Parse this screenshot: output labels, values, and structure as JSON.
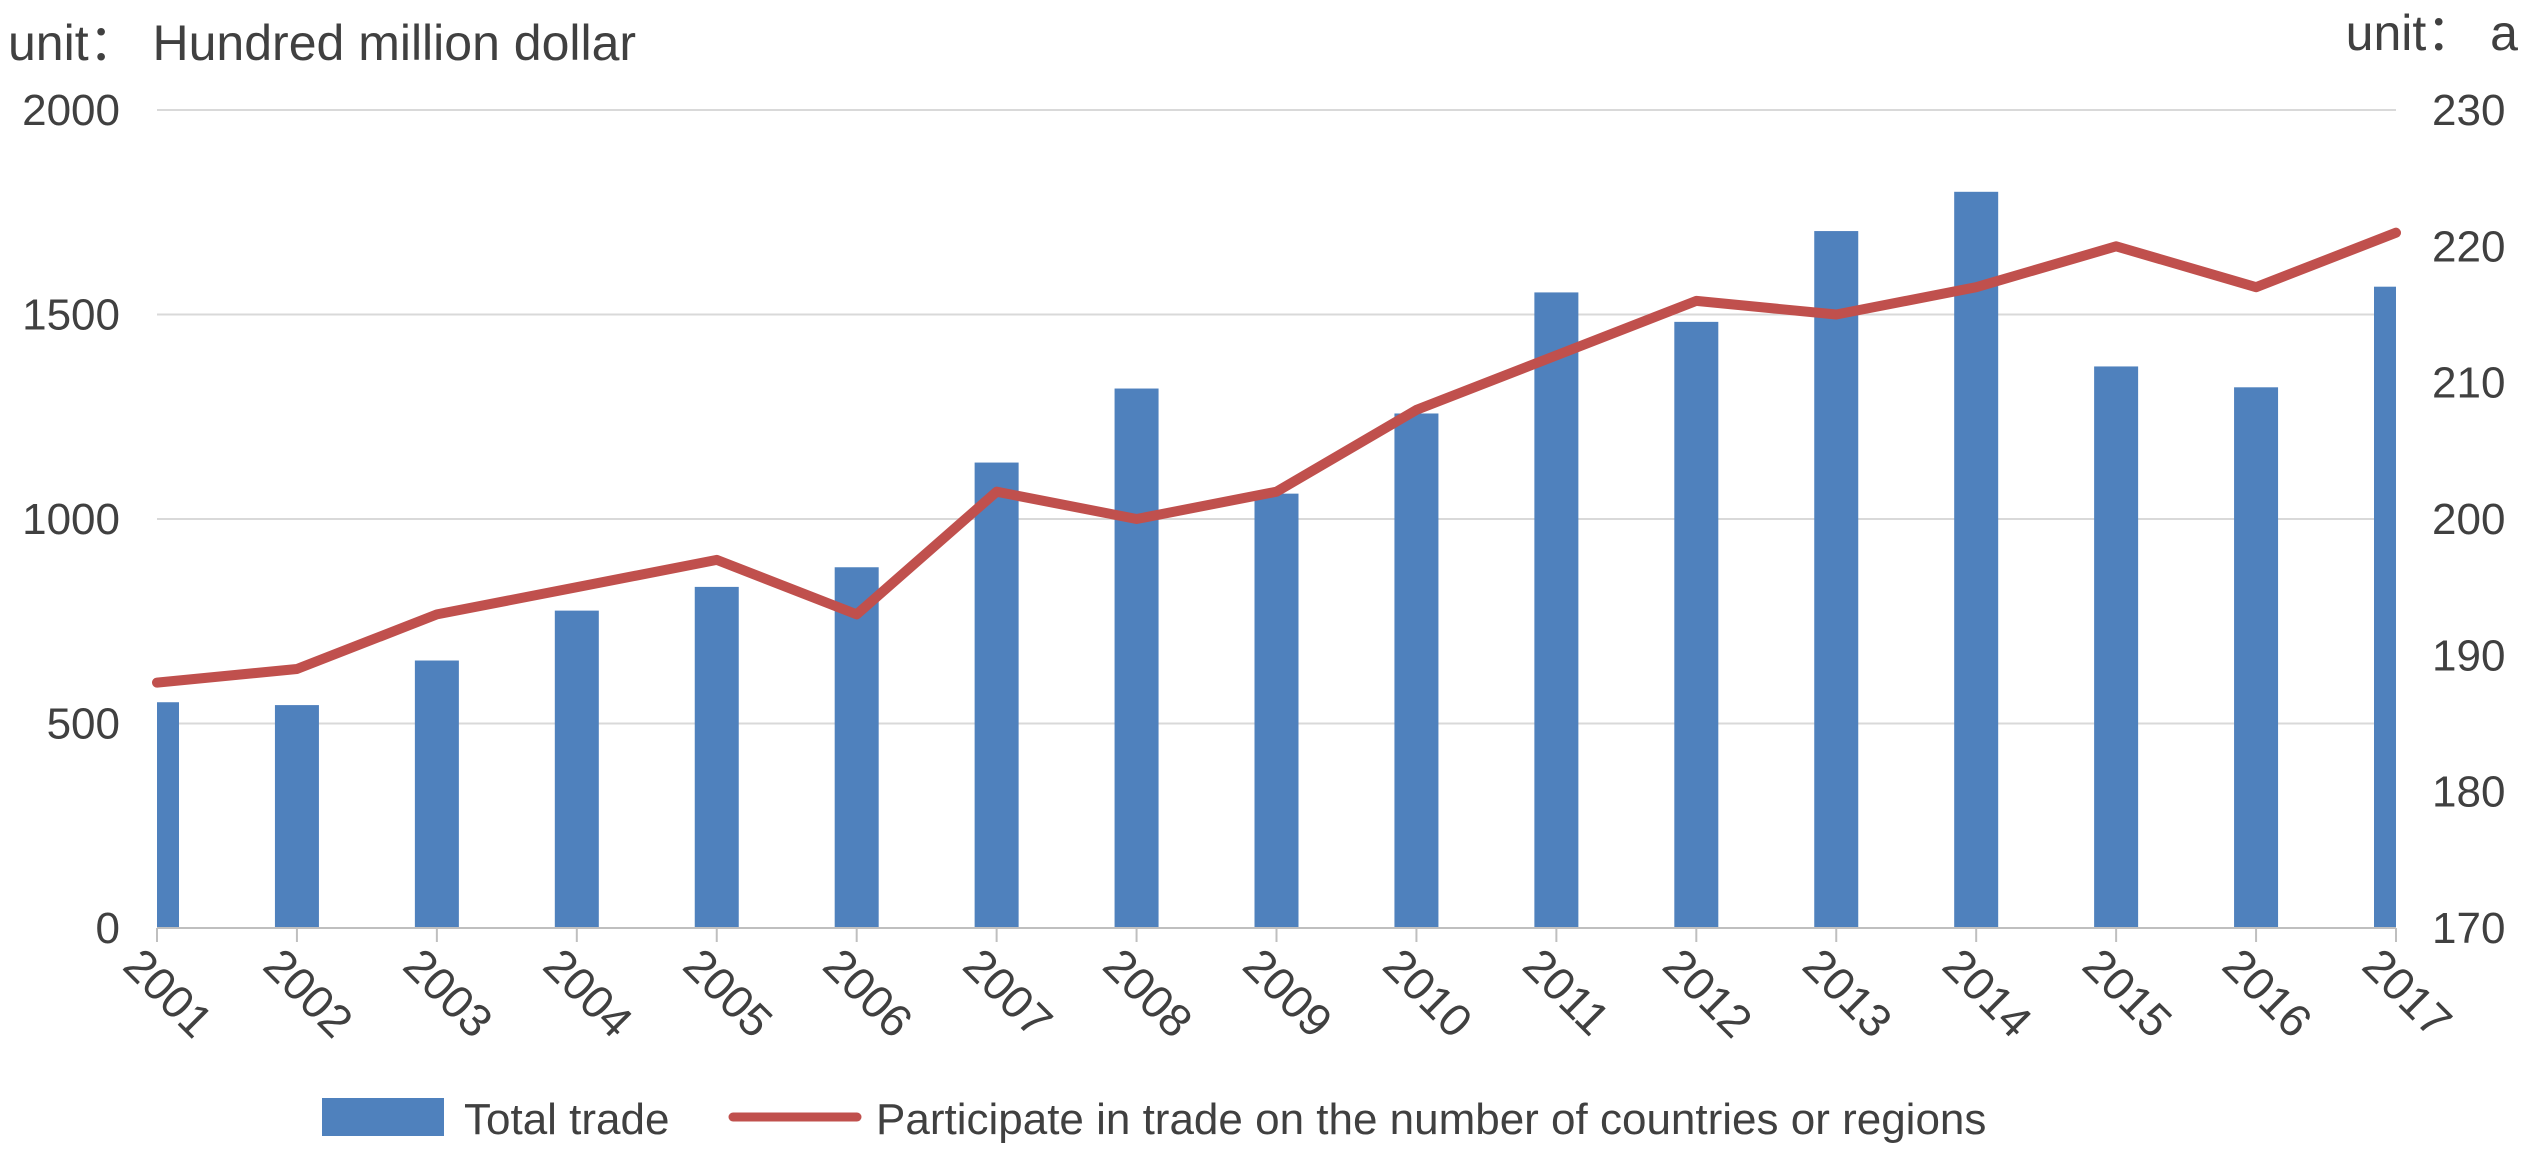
{
  "chart_data": {
    "type": "bar",
    "x": [
      "2001",
      "2002",
      "2003",
      "2004",
      "2005",
      "2006",
      "2007",
      "2008",
      "2009",
      "2010",
      "2011",
      "2012",
      "2013",
      "2014",
      "2015",
      "2016",
      "2017"
    ],
    "series": [
      {
        "name": "Total trade",
        "kind": "bar",
        "axis": "left",
        "color": "#4f81bd",
        "values": [
          552,
          545,
          654,
          776,
          834,
          882,
          1138,
          1319,
          1062,
          1258,
          1554,
          1482,
          1704,
          1800,
          1373,
          1322,
          1568
        ]
      },
      {
        "name": "Participate in trade on the number of countries or regions",
        "kind": "line",
        "axis": "right",
        "color": "#c0504d",
        "values": [
          188,
          189,
          193,
          195,
          197,
          193,
          202,
          200,
          202,
          208,
          212,
          216,
          215,
          217,
          220,
          217,
          221
        ]
      }
    ],
    "left_axis": {
      "unit_label": "unit：  Hundred million dollar",
      "ylim": [
        0,
        2000
      ],
      "ticks": [
        0,
        500,
        1000,
        1500,
        2000
      ]
    },
    "right_axis": {
      "unit_label": "unit：  a",
      "ylim": [
        170,
        230
      ],
      "ticks": [
        170,
        180,
        190,
        200,
        210,
        220,
        230
      ]
    },
    "grid": true,
    "legend_position": "bottom"
  }
}
